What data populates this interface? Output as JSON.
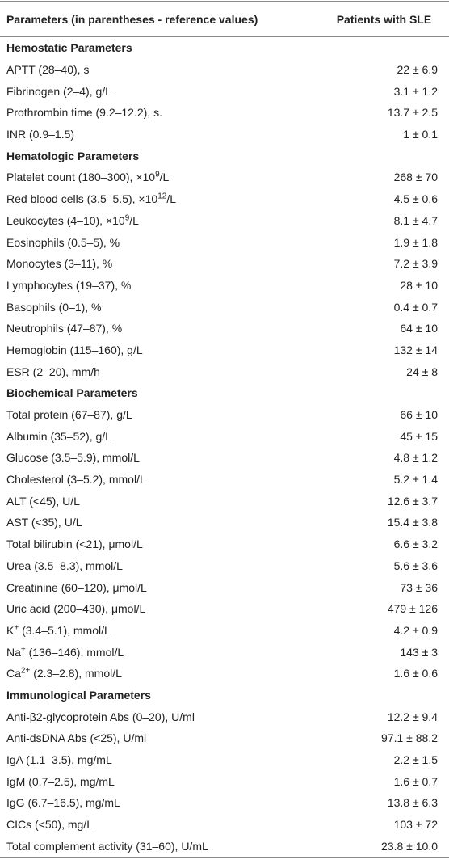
{
  "header": [
    "Parameters (in parentheses - reference values)",
    "Patients with SLE"
  ],
  "sections": [
    {
      "title": "Hemostatic Parameters",
      "rows": [
        {
          "label": [
            "APTT (28–40), s"
          ],
          "value": "22 ± 6.9"
        },
        {
          "label": [
            "Fibrinogen (2–4), g/L"
          ],
          "value": "3.1 ± 1.2"
        },
        {
          "label": [
            "Prothrombin time (9.2–12.2), s."
          ],
          "value": "13.7 ± 2.5"
        },
        {
          "label": [
            "INR (0.9–1.5)"
          ],
          "value": "1 ± 0.1"
        }
      ]
    },
    {
      "title": "Hematologic Parameters",
      "rows": [
        {
          "label": [
            "Platelet count (180–300), ×10",
            "9",
            "/L"
          ],
          "value": "268 ± 70"
        },
        {
          "label": [
            "Red blood cells (3.5–5.5), ×10",
            "12",
            "/L"
          ],
          "value": "4.5 ± 0.6"
        },
        {
          "label": [
            "Leukocytes (4–10), ×10",
            "9",
            "/L"
          ],
          "value": "8.1 ± 4.7"
        },
        {
          "label": [
            "Eosinophils (0.5–5), %"
          ],
          "value": "1.9 ± 1.8"
        },
        {
          "label": [
            "Monocytes (3–11), %"
          ],
          "value": "7.2 ± 3.9"
        },
        {
          "label": [
            "Lymphocytes (19–37), %"
          ],
          "value": "28 ± 10"
        },
        {
          "label": [
            "Basophils (0–1), %"
          ],
          "value": "0.4 ± 0.7"
        },
        {
          "label": [
            "Neutrophils (47–87), %"
          ],
          "value": "64 ± 10"
        },
        {
          "label": [
            "Hemoglobin (115–160), g/L"
          ],
          "value": "132 ± 14"
        },
        {
          "label": [
            "ESR (2–20), mm/h"
          ],
          "value": "24 ± 8"
        }
      ]
    },
    {
      "title": "Biochemical Parameters",
      "rows": [
        {
          "label": [
            "Total protein (67–87), g/L"
          ],
          "value": "66 ± 10"
        },
        {
          "label": [
            "Albumin (35–52), g/L"
          ],
          "value": "45 ± 15"
        },
        {
          "label": [
            "Glucose (3.5–5.9), mmol/L"
          ],
          "value": "4.8 ± 1.2"
        },
        {
          "label": [
            "Cholesterol (3–5.2), mmol/L"
          ],
          "value": "5.2 ± 1.4"
        },
        {
          "label": [
            "ALT (<45), U/L"
          ],
          "value": "12.6 ± 3.7"
        },
        {
          "label": [
            "AST (<35), U/L"
          ],
          "value": "15.4 ± 3.8"
        },
        {
          "label": [
            "Total bilirubin (<21), μmol/L"
          ],
          "value": "6.6 ± 3.2"
        },
        {
          "label": [
            "Urea (3.5–8.3), mmol/L"
          ],
          "value": "5.6 ± 3.6"
        },
        {
          "label": [
            "Creatinine (60–120), μmol/L"
          ],
          "value": "73 ± 36"
        },
        {
          "label": [
            "Uric acid (200–430), μmol/L"
          ],
          "value": "479 ± 126"
        },
        {
          "label": [
            "K",
            "+",
            " (3.4–5.1), mmol/L"
          ],
          "value": "4.2 ± 0.9"
        },
        {
          "label": [
            "Na",
            "+",
            " (136–146), mmol/L"
          ],
          "value": "143 ± 3"
        },
        {
          "label": [
            "Ca",
            "2+",
            " (2.3–2.8), mmol/L"
          ],
          "value": "1.6 ± 0.6"
        }
      ]
    },
    {
      "title": "Immunological Parameters",
      "rows": [
        {
          "label": [
            "Anti-β2-glycoprotein Abs (0–20), U/ml"
          ],
          "value": "12.2 ± 9.4"
        },
        {
          "label": [
            "Anti-dsDNA Abs (<25), U/ml"
          ],
          "value": "97.1 ± 88.2"
        },
        {
          "label": [
            "IgA (1.1–3.5), mg/mL"
          ],
          "value": "2.2 ± 1.5"
        },
        {
          "label": [
            "IgM (0.7–2.5), mg/mL"
          ],
          "value": "1.6 ± 0.7"
        },
        {
          "label": [
            "IgG (6.7–16.5), mg/mL"
          ],
          "value": "13.8 ± 6.3"
        },
        {
          "label": [
            "CICs (<50), mg/L"
          ],
          "value": "103 ± 72"
        },
        {
          "label": [
            "Total complement activity (31–60), U/mL"
          ],
          "value": "23.8 ± 10.0"
        }
      ]
    }
  ]
}
